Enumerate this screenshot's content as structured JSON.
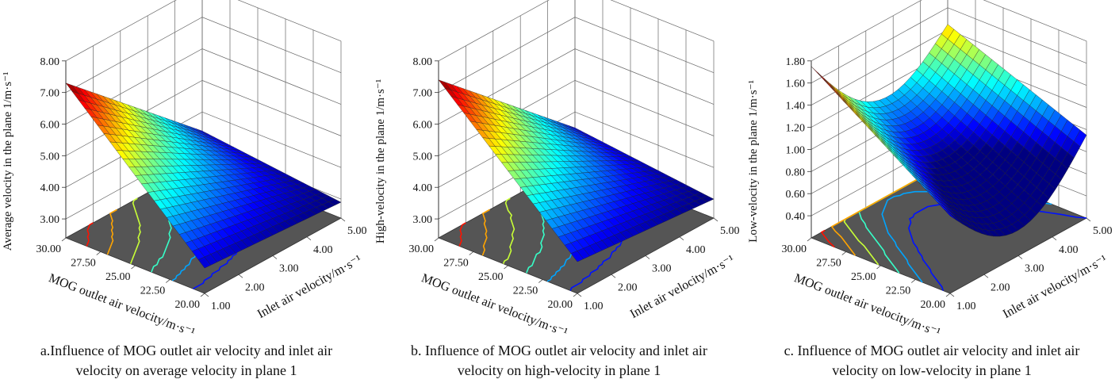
{
  "chart_data": [
    {
      "type": "surface",
      "x_axis": {
        "label": "Inlet air velocity/m·s⁻¹",
        "ticks": [
          "1.00",
          "2.00",
          "3.00",
          "4.00",
          "5.00"
        ],
        "range": [
          1,
          5
        ]
      },
      "y_axis": {
        "label": "MOG outlet air velocity/m·s⁻¹",
        "ticks": [
          "20.00",
          "22.50",
          "25.00",
          "27.50",
          "30.00"
        ],
        "range": [
          20,
          30
        ]
      },
      "z_axis": {
        "label": "Average velocity in the plane 1/m·s⁻¹",
        "ticks": [
          "3.00",
          "4.00",
          "5.00",
          "6.00",
          "7.00",
          "8.00"
        ],
        "range": [
          2.4,
          8
        ]
      },
      "corner_values": {
        "x1_y20": 3.2,
        "x5_y20": 2.9,
        "x1_y30": 7.3,
        "x5_y30": 3.4
      },
      "caption_line1": "a.Influence of MOG outlet air velocity and inlet air",
      "caption_line2": "velocity on average velocity in plane 1"
    },
    {
      "type": "surface",
      "x_axis": {
        "label": "Inlet air velocity/m·s⁻¹",
        "ticks": [
          "1.00",
          "2.00",
          "3.00",
          "4.00",
          "5.00"
        ],
        "range": [
          1,
          5
        ]
      },
      "y_axis": {
        "label": "MOG outlet air velocity/m·s⁻¹",
        "ticks": [
          "20.00",
          "22.50",
          "25.00",
          "27.50",
          "30.00"
        ],
        "range": [
          20,
          30
        ]
      },
      "z_axis": {
        "label": "High-velocity in the plane 1/m·s⁻¹",
        "ticks": [
          "3.00",
          "4.00",
          "5.00",
          "6.00",
          "7.00",
          "8.00"
        ],
        "range": [
          2.4,
          8
        ]
      },
      "corner_values": {
        "x1_y20": 3.4,
        "x5_y20": 3.0,
        "x1_y30": 7.4,
        "x5_y30": 3.5
      },
      "caption_line1": "b. Influence of MOG outlet air velocity and inlet air",
      "caption_line2": "velocity on high-velocity in plane 1"
    },
    {
      "type": "surface",
      "x_axis": {
        "label": "Inlet air velocity/m·s⁻¹",
        "ticks": [
          "1.00",
          "2.00",
          "3.00",
          "4.00",
          "5.00"
        ],
        "range": [
          1,
          5
        ]
      },
      "y_axis": {
        "label": "MOG outlet air velocity/m·s⁻¹",
        "ticks": [
          "20.00",
          "22.50",
          "25.00",
          "27.50",
          "30.00"
        ],
        "range": [
          20,
          30
        ]
      },
      "z_axis": {
        "label": "Low-velocity in the plane 1/m·s⁻¹",
        "ticks": [
          "0.40",
          "0.60",
          "0.80",
          "1.00",
          "1.20",
          "1.40",
          "1.60",
          "1.80"
        ],
        "range": [
          0.2,
          1.8
        ]
      },
      "corner_values": {
        "x1_y20": 0.9,
        "x5_y20": 0.8,
        "x1_y30": 1.75,
        "x5_y30": 1.45
      },
      "caption_line1": "c. Influence of MOG outlet air velocity and inlet air",
      "caption_line2": "velocity on low-velocity in plane 1"
    }
  ]
}
